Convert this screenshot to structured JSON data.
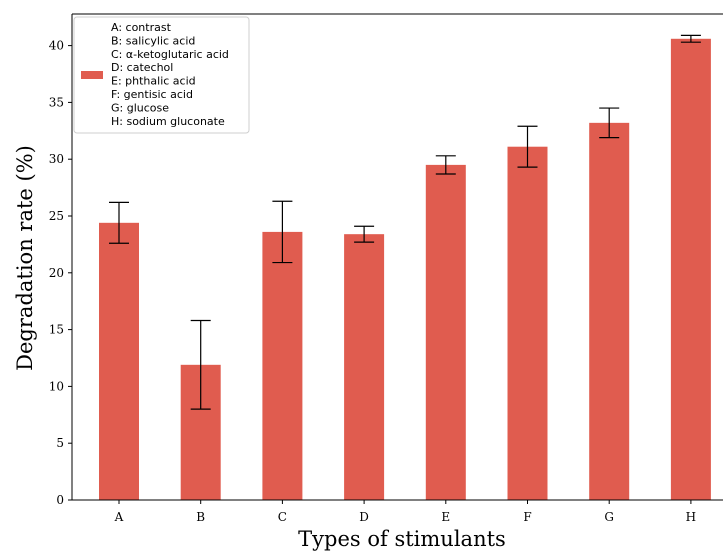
{
  "chart_data": {
    "type": "bar",
    "categories": [
      "A",
      "B",
      "C",
      "D",
      "E",
      "F",
      "G",
      "H"
    ],
    "values": [
      24.4,
      11.9,
      23.6,
      23.4,
      29.5,
      31.1,
      33.2,
      40.6
    ],
    "errors": [
      1.8,
      3.9,
      2.7,
      0.7,
      0.8,
      1.8,
      1.3,
      0.3
    ],
    "xlabel": "Types of stimulants",
    "ylabel": "Degradation rate (%)",
    "ylim": [
      0,
      42.5
    ],
    "yticks": [
      0,
      5,
      10,
      15,
      20,
      25,
      30,
      35,
      40
    ],
    "bar_color": "#e05c4f",
    "grid": false,
    "legend": {
      "placement": "top-left",
      "lines": [
        "A: contrast",
        "B: salicylic acid",
        "C: α-ketoglutaric acid",
        "D: catechol",
        "E: phthalic acid",
        "F: gentisic acid",
        "G: glucose",
        "H: sodium gluconate"
      ]
    }
  }
}
